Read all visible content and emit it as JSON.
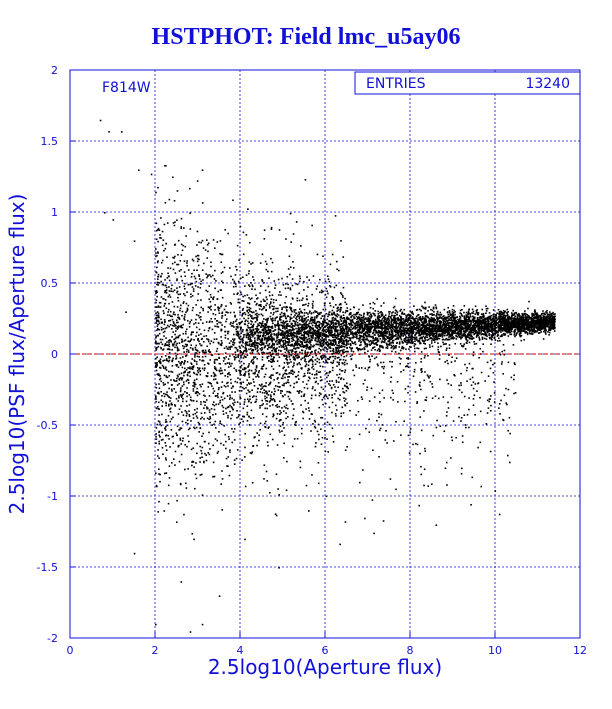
{
  "title": "HSTPHOT: Field lmc_u5ay06",
  "chart_data": {
    "type": "scatter",
    "title": "HSTPHOT: Field lmc_u5ay06",
    "xlabel": "2.5log10(Aperture flux)",
    "ylabel": "2.5log10(PSF flux/Aperture flux)",
    "xlim": [
      0,
      12
    ],
    "ylim": [
      -2,
      2
    ],
    "xticks": [
      0,
      2,
      4,
      6,
      8,
      10,
      12
    ],
    "yticks": [
      -2,
      -1.5,
      -1,
      -0.5,
      0,
      0.5,
      1,
      1.5,
      2
    ],
    "grid": true,
    "filter_label": "F814W",
    "stats": {
      "label": "ENTRIES",
      "value": "13240"
    },
    "reference_line": {
      "y": 0,
      "color": "#cc0000",
      "style": "dashed"
    },
    "colors": {
      "axes": "#1010d8",
      "points": "#000000",
      "title": "#1010d8"
    },
    "density_description": [
      {
        "x_range": [
          3.8,
          11.4
        ],
        "center_y": 0.18,
        "spread": 0.08,
        "note": "dense horizontal band"
      },
      {
        "x_range": [
          2.0,
          5.0
        ],
        "center_y": 0.0,
        "spread": 0.6,
        "note": "broad scatter at faint end"
      }
    ],
    "sample_points": [
      [
        0.7,
        1.65
      ],
      [
        0.9,
        1.57
      ],
      [
        1.2,
        1.57
      ],
      [
        1.6,
        1.3
      ],
      [
        1.9,
        1.27
      ],
      [
        2.4,
        1.25
      ],
      [
        2.8,
        1.17
      ],
      [
        3.1,
        1.3
      ],
      [
        0.8,
        1.0
      ],
      [
        1.0,
        0.95
      ],
      [
        1.5,
        0.8
      ],
      [
        2.6,
        0.9
      ],
      [
        3.3,
        0.55
      ],
      [
        4.6,
        0.6
      ],
      [
        5.3,
        0.5
      ],
      [
        1.3,
        0.3
      ],
      [
        2.0,
        -1.9
      ],
      [
        2.6,
        -1.6
      ],
      [
        2.9,
        -1.3
      ],
      [
        3.5,
        -1.7
      ],
      [
        3.1,
        -1.9
      ],
      [
        1.5,
        -1.4
      ],
      [
        2.2,
        -1.1
      ],
      [
        4.1,
        -1.3
      ],
      [
        5.6,
        -1.1
      ],
      [
        8.6,
        -1.2
      ],
      [
        9.2,
        -0.8
      ],
      [
        10.2,
        0.0
      ],
      [
        10.6,
        0.1
      ],
      [
        6.8,
        -0.9
      ],
      [
        7.4,
        -0.6
      ],
      [
        4.9,
        -1.5
      ]
    ]
  }
}
